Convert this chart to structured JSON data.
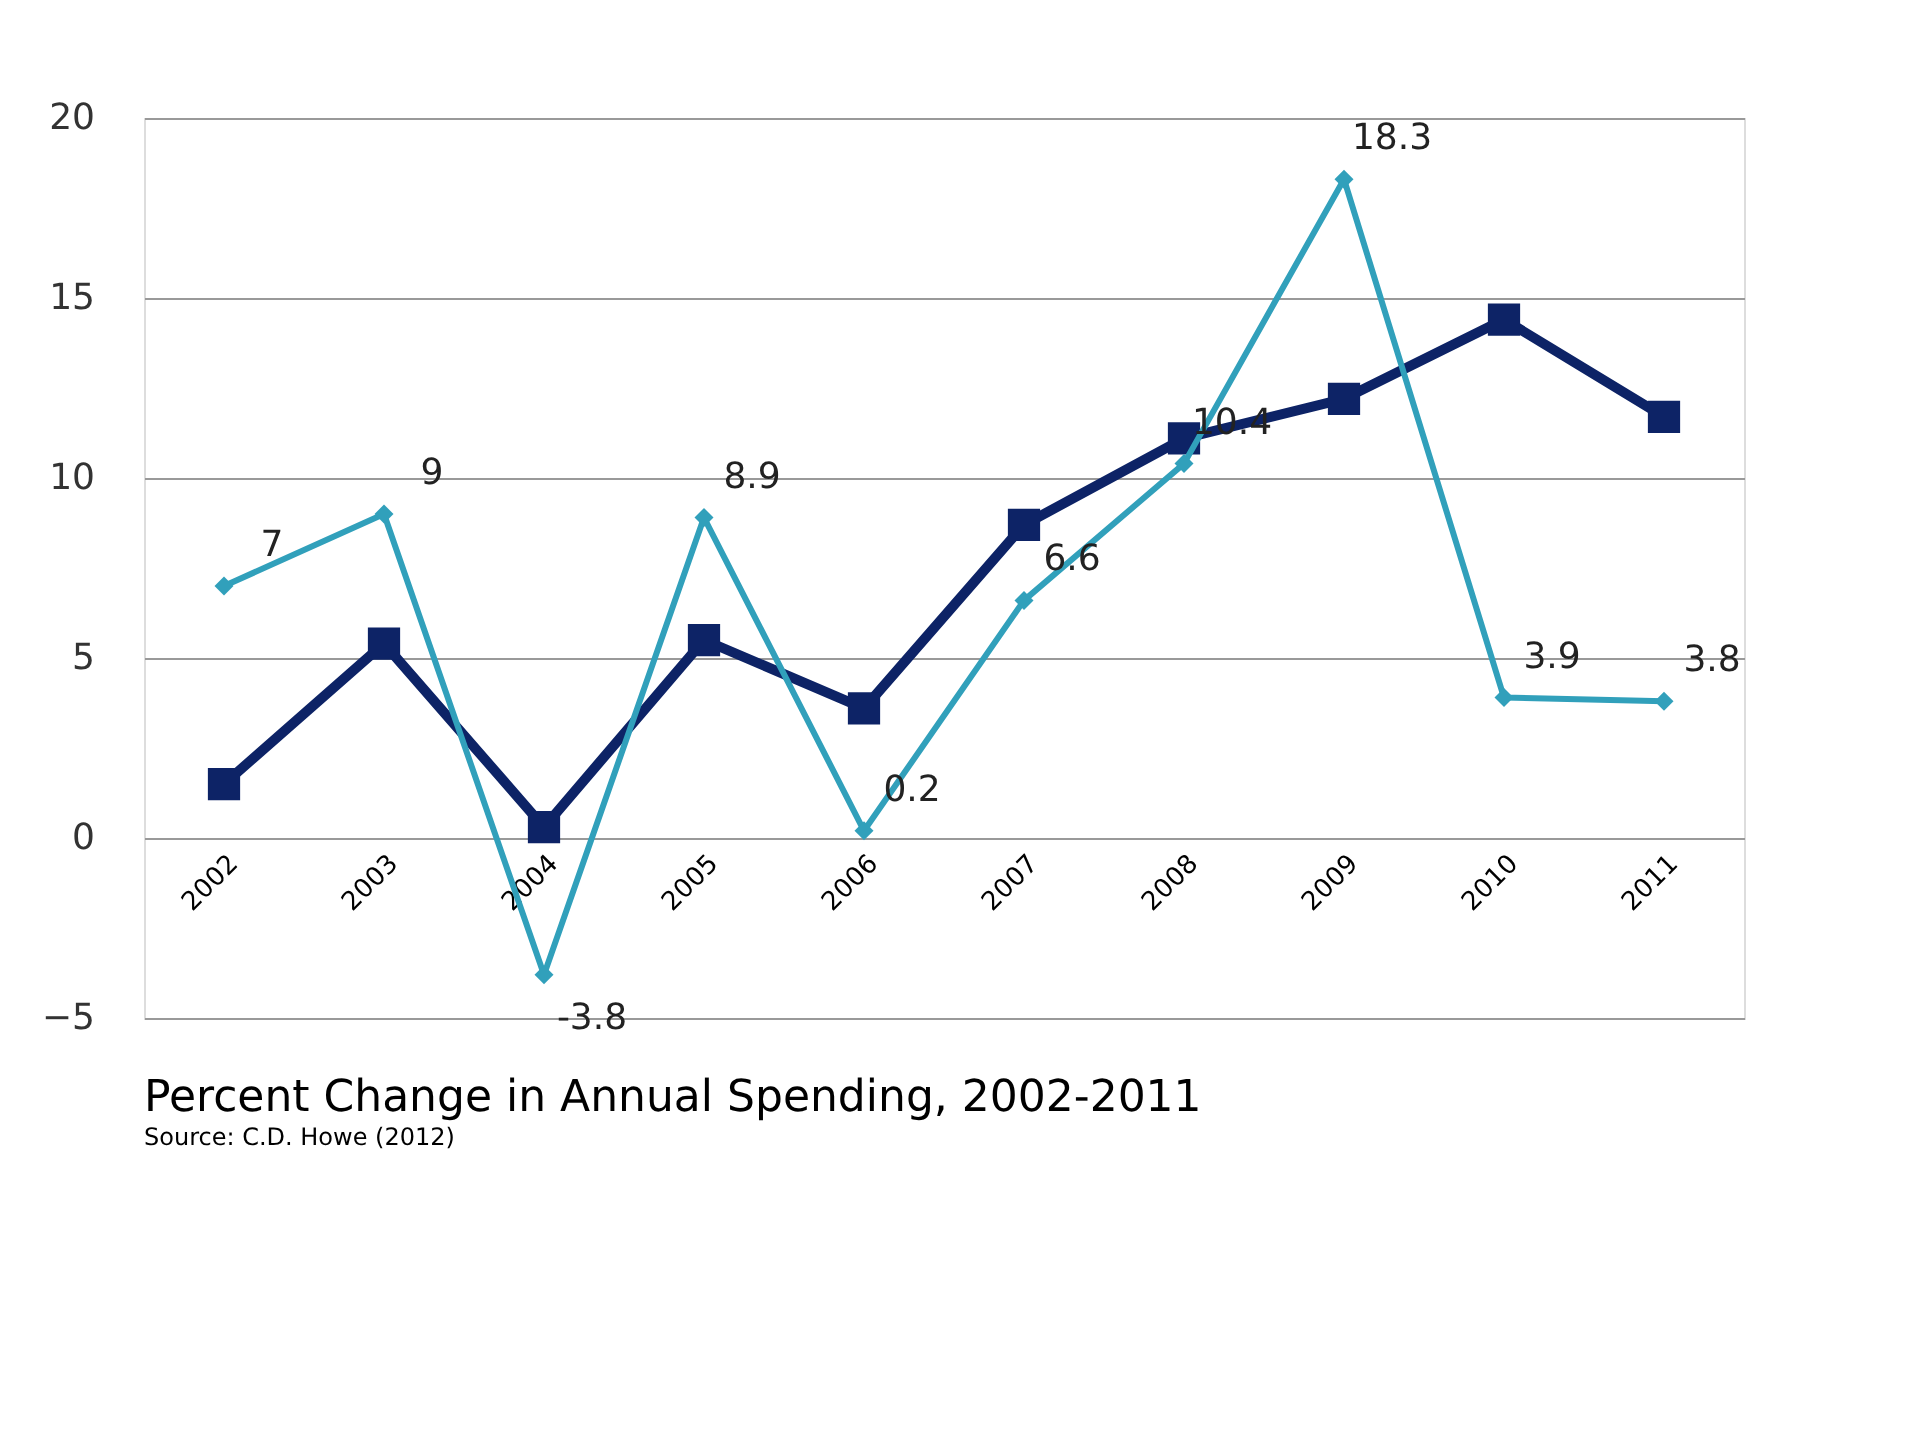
{
  "chart_data": {
    "type": "line",
    "title": "Percent Change in Annual Spending, 2002-2011",
    "annotations": [
      "Source: C.D. Howe (2012)"
    ],
    "categories": [
      "2002",
      "2003",
      "2004",
      "2005",
      "2006",
      "2007",
      "2008",
      "2009",
      "2010",
      "2011"
    ],
    "series": [
      {
        "color": "#0d2366",
        "marker": "square",
        "values": [
          1.5,
          5.4,
          0.3,
          5.5,
          3.6,
          8.7,
          11.1,
          12.2,
          14.4,
          11.7
        ]
      },
      {
        "color": "#31a0bb",
        "marker": "diamond",
        "values": [
          7,
          9,
          -3.8,
          8.9,
          0.2,
          6.6,
          10.4,
          18.3,
          3.9,
          3.8
        ],
        "value_labels": [
          "7",
          "9",
          "-3.8",
          "8.9",
          "0.2",
          "6.6",
          "10.4",
          "18.3",
          "3.9",
          "3.8"
        ]
      }
    ],
    "ylim": [
      -5,
      20
    ],
    "yticks": [
      -5,
      0,
      5,
      10,
      15,
      20
    ],
    "grid": "y",
    "line_style": "solid"
  }
}
